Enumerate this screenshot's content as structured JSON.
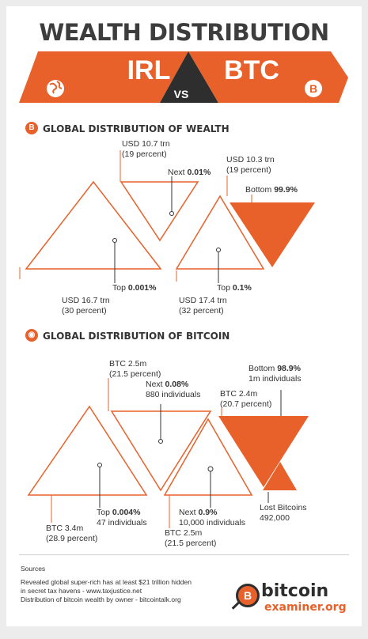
{
  "header": {
    "title": "WEALTH DISTRIBUTION",
    "irl": "IRL",
    "vs": "VS",
    "btc": "BTC"
  },
  "colors": {
    "accent": "#e8612a",
    "dark": "#333333"
  },
  "icons": {
    "globe": "globe-icon",
    "bitcoin": "bitcoin-icon"
  },
  "wealth": {
    "title": "GLOBAL DISTRIBUTION OF WEALTH",
    "top_001": {
      "amount": "USD 16.7 trn",
      "percent": "(30 percent)",
      "label": "Top ",
      "value": "0.001%"
    },
    "next_001": {
      "amount": "USD 10.7 trn",
      "percent": "(19 percent)",
      "label": "Next ",
      "value": "0.01%"
    },
    "top_01": {
      "amount": "USD 17.4 trn",
      "percent": "(32 percent)",
      "label": "Top ",
      "value": "0.1%"
    },
    "bottom_999": {
      "amount": "USD 10.3 trn",
      "percent": "(19 percent)",
      "label": "Bottom ",
      "value": "99.9%"
    }
  },
  "bitcoin": {
    "title": "GLOBAL DISTRIBUTION OF BITCOIN",
    "top_0004": {
      "amount": "BTC 3.4m",
      "percent": "(28.9 percent)",
      "label": "Top ",
      "value": "0.004%",
      "count": "47 individuals"
    },
    "next_008": {
      "amount": "BTC 2.5m",
      "percent": "(21.5 percent)",
      "label": "Next ",
      "value": "0.08%",
      "count": "880 individuals"
    },
    "next_09": {
      "amount": "BTC 2.5m",
      "percent": "(21.5 percent)",
      "label": "Next ",
      "value": "0.9%",
      "count": "10,000 individuals"
    },
    "bottom_989": {
      "amount": "BTC 2.4m",
      "percent": "(20.7 percent)",
      "label": "Bottom ",
      "value": "98.9%",
      "count": "1m individuals"
    },
    "lost": {
      "label": "Lost Bitcoins",
      "amount": "492,000"
    }
  },
  "sources": {
    "heading": "Sources",
    "line1": "Revealed global super-rich has at least $21 trillion hidden",
    "line2": "in secret tax havens - www.taxjustice.net",
    "line3": "Distribution of bitcoin wealth by owner - bitcointalk.org"
  },
  "logo": {
    "icon": "B",
    "line1": "bitcoin",
    "line2": "examiner.org"
  }
}
